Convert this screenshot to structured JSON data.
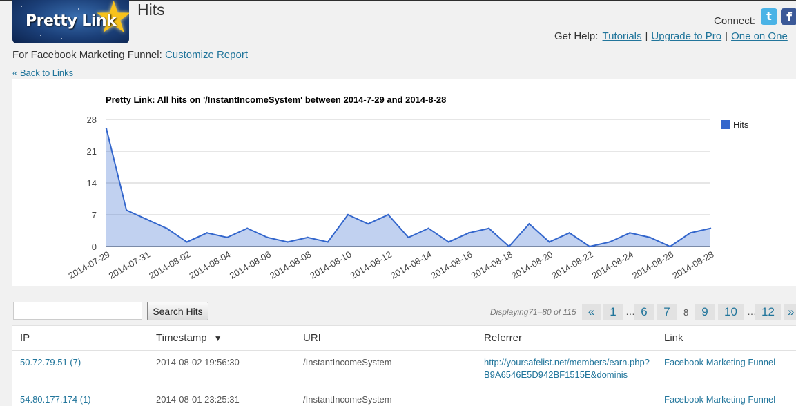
{
  "header": {
    "logo_text": "Pretty Link",
    "page_title": "Hits",
    "connect_label": "Connect:",
    "help_label": "Get Help:",
    "help_links": [
      "Tutorials",
      "Upgrade to Pro",
      "One on One"
    ],
    "help_separator": "|"
  },
  "report": {
    "prefix": "For Facebook Marketing Funnel:",
    "customize_link": "Customize Report",
    "back_link": "« Back to Links"
  },
  "chart_data": {
    "type": "area",
    "title": "Pretty Link: All hits on '/InstantIncomeSystem' between 2014-7-29 and 2014-8-28",
    "xlabel": "",
    "ylabel": "",
    "ylim": [
      0,
      28
    ],
    "yticks": [
      "0",
      "7",
      "14",
      "21",
      "28"
    ],
    "x": [
      "2014-07-29",
      "2014-07-30",
      "2014-07-31",
      "2014-08-01",
      "2014-08-02",
      "2014-08-03",
      "2014-08-04",
      "2014-08-05",
      "2014-08-06",
      "2014-08-07",
      "2014-08-08",
      "2014-08-09",
      "2014-08-10",
      "2014-08-11",
      "2014-08-12",
      "2014-08-13",
      "2014-08-14",
      "2014-08-15",
      "2014-08-16",
      "2014-08-17",
      "2014-08-18",
      "2014-08-19",
      "2014-08-20",
      "2014-08-21",
      "2014-08-22",
      "2014-08-23",
      "2014-08-24",
      "2014-08-25",
      "2014-08-26",
      "2014-08-27",
      "2014-08-28"
    ],
    "xtick_labels": [
      "2014-07-29",
      "2014-07-31",
      "2014-08-02",
      "2014-08-04",
      "2014-08-06",
      "2014-08-08",
      "2014-08-10",
      "2014-08-12",
      "2014-08-14",
      "2014-08-16",
      "2014-08-18",
      "2014-08-20",
      "2014-08-22",
      "2014-08-24",
      "2014-08-26",
      "2014-08-28"
    ],
    "series": [
      {
        "name": "Hits",
        "color": "#3366cc",
        "values": [
          26,
          8,
          6,
          4,
          1,
          3,
          2,
          4,
          2,
          1,
          2,
          1,
          7,
          5,
          7,
          2,
          4,
          1,
          3,
          4,
          0,
          5,
          1,
          3,
          0,
          1,
          3,
          2,
          0,
          3,
          4
        ]
      }
    ],
    "legend": "right",
    "grid": true
  },
  "search": {
    "value": "",
    "placeholder": "",
    "button_label": "Search Hits"
  },
  "pagination": {
    "displaying_prefix": "Displaying",
    "displaying_range": "71–80 of 115",
    "prev": "«",
    "pages": [
      "1",
      "6",
      "7",
      "8",
      "9",
      "10",
      "12"
    ],
    "current": "8",
    "ellipsis": "…",
    "next": "»"
  },
  "table": {
    "columns": [
      "IP",
      "Timestamp",
      "URI",
      "Referrer",
      "Link"
    ],
    "sort_indicator": "▼",
    "rows": [
      {
        "ip": "50.72.79.51 (7)",
        "timestamp": "2014-08-02 19:56:30",
        "uri": "/InstantIncomeSystem",
        "referrer": "http://yoursafelist.net/members/earn.php?B9A6546E5D942BF1515E&dominis",
        "link": "Facebook Marketing Funnel"
      },
      {
        "ip": "54.80.177.174 (1)",
        "timestamp": "2014-08-01 23:25:31",
        "uri": "/InstantIncomeSystem",
        "referrer": "",
        "link": "Facebook Marketing Funnel"
      }
    ]
  }
}
